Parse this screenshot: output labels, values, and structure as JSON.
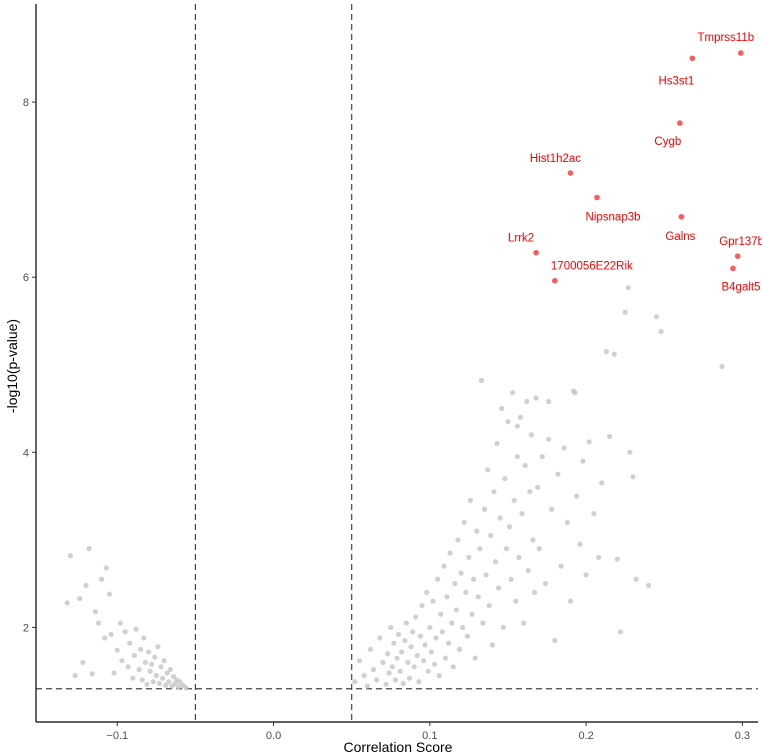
{
  "chart_data": {
    "type": "scatter",
    "title": "",
    "xlabel": "Correlation Score",
    "ylabel": "-log10(p-value)",
    "xlim": [
      -0.152,
      0.31
    ],
    "ylim": [
      0.92,
      9.12
    ],
    "x_ticks": [
      -0.1,
      0.0,
      0.1,
      0.2,
      0.3
    ],
    "x_tick_labels": [
      "−0.1",
      "0.0",
      "0.1",
      "0.2",
      "0.3"
    ],
    "y_ticks": [
      2,
      4,
      6,
      8
    ],
    "y_tick_labels": [
      "2",
      "4",
      "6",
      "8"
    ],
    "thresholds": {
      "x": [
        -0.05,
        0.05
      ],
      "y": 1.3
    },
    "grid": false,
    "colors": {
      "background_points": "#c8c8c8",
      "highlight_points": "#ff5a5a",
      "highlight_labels": "#ff0000",
      "threshold_lines": "#444444",
      "axis": "#000000"
    },
    "highlighted": [
      {
        "name": "Tmprss11b",
        "x": 0.299,
        "y": 8.56
      },
      {
        "name": "Hs3st1",
        "x": 0.268,
        "y": 8.5
      },
      {
        "name": "Cygb",
        "x": 0.26,
        "y": 7.76
      },
      {
        "name": "Hist1h2ac",
        "x": 0.19,
        "y": 7.19
      },
      {
        "name": "Nipsnap3b",
        "x": 0.207,
        "y": 6.91
      },
      {
        "name": "Galns",
        "x": 0.261,
        "y": 6.69
      },
      {
        "name": "Lrrk2",
        "x": 0.168,
        "y": 6.28
      },
      {
        "name": "Gpr137b",
        "x": 0.297,
        "y": 6.24
      },
      {
        "name": "B4galt5",
        "x": 0.294,
        "y": 6.1
      },
      {
        "name": "1700056E22Rik",
        "x": 0.18,
        "y": 5.96
      }
    ],
    "background_points": [
      [
        -0.132,
        2.28
      ],
      [
        -0.13,
        2.82
      ],
      [
        -0.127,
        1.45
      ],
      [
        -0.124,
        2.33
      ],
      [
        -0.122,
        1.6
      ],
      [
        -0.12,
        2.48
      ],
      [
        -0.118,
        2.9
      ],
      [
        -0.116,
        1.47
      ],
      [
        -0.114,
        2.18
      ],
      [
        -0.112,
        2.05
      ],
      [
        -0.11,
        2.55
      ],
      [
        -0.108,
        1.88
      ],
      [
        -0.107,
        2.68
      ],
      [
        -0.105,
        2.38
      ],
      [
        -0.104,
        1.92
      ],
      [
        -0.102,
        1.48
      ],
      [
        -0.1,
        1.74
      ],
      [
        -0.098,
        2.05
      ],
      [
        -0.097,
        1.62
      ],
      [
        -0.095,
        1.95
      ],
      [
        -0.093,
        1.55
      ],
      [
        -0.092,
        1.82
      ],
      [
        -0.09,
        1.42
      ],
      [
        -0.089,
        1.68
      ],
      [
        -0.088,
        1.98
      ],
      [
        -0.086,
        1.52
      ],
      [
        -0.085,
        1.75
      ],
      [
        -0.084,
        1.4
      ],
      [
        -0.083,
        1.88
      ],
      [
        -0.082,
        1.6
      ],
      [
        -0.081,
        1.35
      ],
      [
        -0.08,
        1.72
      ],
      [
        -0.079,
        1.5
      ],
      [
        -0.078,
        1.58
      ],
      [
        -0.077,
        1.38
      ],
      [
        -0.076,
        1.66
      ],
      [
        -0.075,
        1.45
      ],
      [
        -0.074,
        1.78
      ],
      [
        -0.073,
        1.36
      ],
      [
        -0.072,
        1.55
      ],
      [
        -0.071,
        1.42
      ],
      [
        -0.07,
        1.62
      ],
      [
        -0.069,
        1.34
      ],
      [
        -0.068,
        1.48
      ],
      [
        -0.067,
        1.38
      ],
      [
        -0.066,
        1.52
      ],
      [
        -0.065,
        1.33
      ],
      [
        -0.064,
        1.44
      ],
      [
        -0.063,
        1.36
      ],
      [
        -0.062,
        1.4
      ],
      [
        -0.061,
        1.32
      ],
      [
        -0.06,
        1.38
      ],
      [
        -0.058,
        1.34
      ],
      [
        -0.056,
        1.31
      ],
      [
        0.052,
        1.38
      ],
      [
        0.055,
        1.62
      ],
      [
        0.058,
        1.45
      ],
      [
        0.06,
        1.33
      ],
      [
        0.062,
        1.75
      ],
      [
        0.064,
        1.52
      ],
      [
        0.066,
        1.4
      ],
      [
        0.068,
        1.88
      ],
      [
        0.07,
        1.6
      ],
      [
        0.072,
        1.35
      ],
      [
        0.073,
        1.7
      ],
      [
        0.074,
        1.48
      ],
      [
        0.075,
        2.0
      ],
      [
        0.076,
        1.55
      ],
      [
        0.077,
        1.82
      ],
      [
        0.078,
        1.4
      ],
      [
        0.079,
        1.65
      ],
      [
        0.08,
        1.92
      ],
      [
        0.081,
        1.5
      ],
      [
        0.082,
        1.72
      ],
      [
        0.083,
        1.36
      ],
      [
        0.084,
        1.85
      ],
      [
        0.085,
        2.05
      ],
      [
        0.086,
        1.6
      ],
      [
        0.087,
        1.42
      ],
      [
        0.088,
        1.78
      ],
      [
        0.089,
        1.95
      ],
      [
        0.09,
        1.55
      ],
      [
        0.091,
        2.12
      ],
      [
        0.092,
        1.68
      ],
      [
        0.093,
        1.38
      ],
      [
        0.094,
        1.9
      ],
      [
        0.095,
        2.25
      ],
      [
        0.096,
        1.62
      ],
      [
        0.097,
        1.8
      ],
      [
        0.098,
        2.4
      ],
      [
        0.099,
        1.5
      ],
      [
        0.1,
        2.0
      ],
      [
        0.101,
        1.72
      ],
      [
        0.102,
        2.3
      ],
      [
        0.103,
        1.58
      ],
      [
        0.104,
        1.88
      ],
      [
        0.105,
        2.55
      ],
      [
        0.106,
        1.45
      ],
      [
        0.107,
        2.15
      ],
      [
        0.108,
        1.95
      ],
      [
        0.109,
        2.7
      ],
      [
        0.11,
        1.65
      ],
      [
        0.111,
        2.35
      ],
      [
        0.112,
        1.82
      ],
      [
        0.113,
        2.85
      ],
      [
        0.114,
        2.05
      ],
      [
        0.115,
        1.55
      ],
      [
        0.116,
        2.5
      ],
      [
        0.117,
        2.2
      ],
      [
        0.118,
        3.0
      ],
      [
        0.119,
        1.75
      ],
      [
        0.12,
        2.62
      ],
      [
        0.121,
        2.0
      ],
      [
        0.122,
        3.2
      ],
      [
        0.123,
        2.4
      ],
      [
        0.124,
        1.9
      ],
      [
        0.125,
        2.8
      ],
      [
        0.126,
        3.45
      ],
      [
        0.127,
        2.15
      ],
      [
        0.128,
        2.55
      ],
      [
        0.129,
        1.65
      ],
      [
        0.13,
        3.1
      ],
      [
        0.131,
        2.35
      ],
      [
        0.132,
        2.9
      ],
      [
        0.133,
        4.82
      ],
      [
        0.134,
        2.05
      ],
      [
        0.135,
        3.35
      ],
      [
        0.136,
        2.6
      ],
      [
        0.137,
        3.8
      ],
      [
        0.138,
        2.25
      ],
      [
        0.139,
        3.05
      ],
      [
        0.14,
        1.8
      ],
      [
        0.141,
        3.55
      ],
      [
        0.142,
        2.75
      ],
      [
        0.143,
        4.1
      ],
      [
        0.144,
        2.45
      ],
      [
        0.145,
        3.25
      ],
      [
        0.146,
        4.5
      ],
      [
        0.147,
        2.0
      ],
      [
        0.148,
        3.7
      ],
      [
        0.149,
        2.9
      ],
      [
        0.15,
        4.35
      ],
      [
        0.151,
        3.15
      ],
      [
        0.152,
        2.55
      ],
      [
        0.153,
        4.68
      ],
      [
        0.154,
        3.45
      ],
      [
        0.155,
        2.3
      ],
      [
        0.156,
        3.95
      ],
      [
        0.157,
        2.8
      ],
      [
        0.158,
        4.4
      ],
      [
        0.159,
        3.3
      ],
      [
        0.16,
        2.05
      ],
      [
        0.161,
        3.85
      ],
      [
        0.162,
        4.58
      ],
      [
        0.163,
        2.65
      ],
      [
        0.164,
        3.55
      ],
      [
        0.165,
        4.2
      ],
      [
        0.166,
        3.0
      ],
      [
        0.167,
        2.4
      ],
      [
        0.168,
        4.62
      ],
      [
        0.169,
        3.6
      ],
      [
        0.17,
        2.9
      ],
      [
        0.172,
        3.95
      ],
      [
        0.174,
        2.5
      ],
      [
        0.176,
        4.15
      ],
      [
        0.178,
        3.35
      ],
      [
        0.18,
        1.85
      ],
      [
        0.182,
        3.75
      ],
      [
        0.184,
        2.7
      ],
      [
        0.186,
        4.05
      ],
      [
        0.188,
        3.2
      ],
      [
        0.19,
        2.3
      ],
      [
        0.192,
        4.7
      ],
      [
        0.194,
        3.5
      ],
      [
        0.196,
        2.95
      ],
      [
        0.198,
        3.9
      ],
      [
        0.2,
        2.6
      ],
      [
        0.202,
        4.12
      ],
      [
        0.205,
        3.3
      ],
      [
        0.208,
        2.8
      ],
      [
        0.21,
        3.65
      ],
      [
        0.213,
        5.15
      ],
      [
        0.215,
        4.18
      ],
      [
        0.218,
        5.12
      ],
      [
        0.22,
        2.78
      ],
      [
        0.222,
        1.95
      ],
      [
        0.225,
        5.6
      ],
      [
        0.228,
        4.0
      ],
      [
        0.23,
        3.72
      ],
      [
        0.232,
        2.55
      ],
      [
        0.24,
        2.48
      ],
      [
        0.245,
        5.55
      ],
      [
        0.248,
        5.38
      ],
      [
        0.227,
        5.88
      ],
      [
        0.287,
        4.98
      ],
      [
        0.193,
        4.68
      ],
      [
        0.176,
        4.58
      ],
      [
        0.156,
        4.3
      ]
    ]
  }
}
